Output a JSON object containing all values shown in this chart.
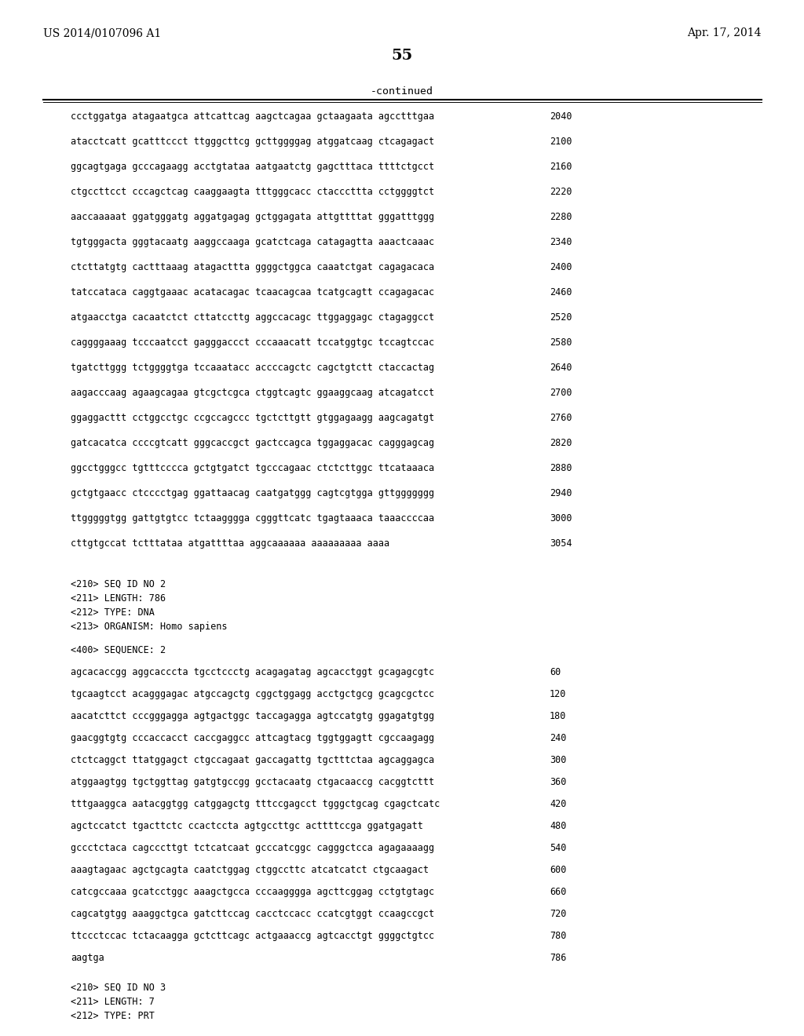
{
  "header_left": "US 2014/0107096 A1",
  "header_right": "Apr. 17, 2014",
  "page_number": "55",
  "continued_label": "-continued",
  "background_color": "#ffffff",
  "text_color": "#000000",
  "sequence_lines": [
    [
      "ccctggatga atagaatgca attcattcag aagctcagaa gctaagaata agcctttgaa",
      "2040"
    ],
    [
      "atacctcatt gcatttccct ttgggcttcg gcttggggag atggatcaag ctcagagact",
      "2100"
    ],
    [
      "ggcagtgaga gcccagaagg acctgtataa aatgaatctg gagctttaca ttttctgcct",
      "2160"
    ],
    [
      "ctgccttcct cccagctcag caaggaagta tttgggcacc ctacccttta cctggggtct",
      "2220"
    ],
    [
      "aaccaaaaat ggatgggatg aggatgagag gctggagata attgttttat gggatttggg",
      "2280"
    ],
    [
      "tgtgggacta gggtacaatg aaggccaaga gcatctcaga catagagtta aaactcaaac",
      "2340"
    ],
    [
      "ctcttatgtg cactttaaag atagacttta ggggctggca caaatctgat cagagacaca",
      "2400"
    ],
    [
      "tatccataca caggtgaaac acatacagac tcaacagcaa tcatgcagtt ccagagacac",
      "2460"
    ],
    [
      "atgaacctga cacaatctct cttatccttg aggccacagc ttggaggagc ctagaggcct",
      "2520"
    ],
    [
      "caggggaaag tcccaatcct gagggaccct cccaaacatt tccatggtgc tccagtccac",
      "2580"
    ],
    [
      "tgatcttggg tctggggtga tccaaatacc accccagctc cagctgtctt ctaccactag",
      "2640"
    ],
    [
      "aagacccaag agaagcagaa gtcgctcgca ctggtcagtc ggaaggcaag atcagatcct",
      "2700"
    ],
    [
      "ggaggacttt cctggcctgc ccgccagccc tgctcttgtt gtggagaagg aagcagatgt",
      "2760"
    ],
    [
      "gatcacatca ccccgtcatt gggcaccgct gactccagca tggaggacac cagggagcag",
      "2820"
    ],
    [
      "ggcctgggcc tgtttcccca gctgtgatct tgcccagaac ctctcttggc ttcataaaca",
      "2880"
    ],
    [
      "gctgtgaacc ctcccctgag ggattaacag caatgatggg cagtcgtgga gttggggggg",
      "2940"
    ],
    [
      "ttgggggtgg gattgtgtcc tctaagggga cgggttcatc tgagtaaaca taaaccccaa",
      "3000"
    ],
    [
      "cttgtgccat tctttataa atgattttaa aggcaaaaaa aaaaaaaaa aaaa",
      "3054"
    ]
  ],
  "seq2_header_lines": [
    "<210> SEQ ID NO 2",
    "<211> LENGTH: 786",
    "<212> TYPE: DNA",
    "<213> ORGANISM: Homo sapiens"
  ],
  "seq2_label": "<400> SEQUENCE: 2",
  "seq2_lines": [
    [
      "agcacaccgg aggcacccta tgcctccctg acagagatag agcacctggt gcagagcgtc",
      "60"
    ],
    [
      "tgcaagtcct acagggagac atgccagctg cggctggagg acctgctgcg gcagcgctcc",
      "120"
    ],
    [
      "aacatcttct cccgggagga agtgactggc taccagagga agtccatgtg ggagatgtgg",
      "180"
    ],
    [
      "gaacggtgtg cccaccacct caccgaggcc attcagtacg tggtggagtt cgccaagagg",
      "240"
    ],
    [
      "ctctcaggct ttatggagct ctgccagaat gaccagattg tgctttctaa agcaggagca",
      "300"
    ],
    [
      "atggaagtgg tgctggttag gatgtgccgg gcctacaatg ctgacaaccg cacggtcttt",
      "360"
    ],
    [
      "tttgaaggca aatacggtgg catggagctg tttccgagcct tgggctgcag cgagctcatc",
      "420"
    ],
    [
      "agctccatct tgacttctc ccactccta agtgccttgc acttttccga ggatgagatt",
      "480"
    ],
    [
      "gccctctaca cagcccttgt tctcatcaat gcccatcggc cagggctcca agagaaaagg",
      "540"
    ],
    [
      "aaagtagaac agctgcagta caatctggag ctggccttc atcatcatct ctgcaagact",
      "600"
    ],
    [
      "catcgccaaa gcatcctggc aaagctgcca cccaagggga agcttcggag cctgtgtagc",
      "660"
    ],
    [
      "cagcatgtgg aaaggctgca gatcttccag cacctccacc ccatcgtggt ccaagccgct",
      "720"
    ],
    [
      "ttccctccac tctacaagga gctcttcagc actgaaaccg agtcacctgt ggggctgtcc",
      "780"
    ],
    [
      "aagtga",
      "786"
    ]
  ],
  "seq3_header_lines": [
    "<210> SEQ ID NO 3",
    "<211> LENGTH: 7",
    "<212> TYPE: PRT"
  ]
}
